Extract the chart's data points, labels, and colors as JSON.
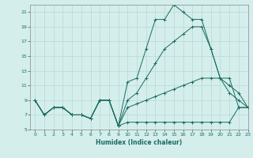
{
  "xlabel": "Humidex (Indice chaleur)",
  "background_color": "#d4eeec",
  "grid_color": "#b8d8d6",
  "line_color": "#1a6b60",
  "xlim_min": -0.5,
  "xlim_max": 23,
  "ylim_min": 5,
  "ylim_max": 22,
  "xticks": [
    0,
    1,
    2,
    3,
    4,
    5,
    6,
    7,
    8,
    9,
    10,
    11,
    12,
    13,
    14,
    15,
    16,
    17,
    18,
    19,
    20,
    21,
    22,
    23
  ],
  "yticks": [
    5,
    7,
    9,
    11,
    13,
    15,
    17,
    19,
    21
  ],
  "lines": [
    {
      "x": [
        0,
        1,
        2,
        3,
        4,
        5,
        6,
        7,
        8,
        9,
        10,
        11,
        12,
        13,
        14,
        15,
        16,
        17,
        18,
        19,
        20,
        21,
        22,
        23
      ],
      "y": [
        9,
        7,
        8,
        8,
        7,
        7,
        6.5,
        9,
        9,
        5.5,
        6,
        6,
        6,
        6,
        6,
        6,
        6,
        6,
        6,
        6,
        6,
        6,
        8,
        8
      ]
    },
    {
      "x": [
        0,
        1,
        2,
        3,
        4,
        5,
        6,
        7,
        8,
        9,
        10,
        11,
        12,
        13,
        14,
        15,
        16,
        17,
        18,
        19,
        20,
        21,
        22,
        23
      ],
      "y": [
        9,
        7,
        8,
        8,
        7,
        7,
        6.5,
        9,
        9,
        5.5,
        8,
        8.5,
        9,
        9.5,
        10,
        10.5,
        11,
        11.5,
        12,
        12,
        12,
        12,
        8,
        8
      ]
    },
    {
      "x": [
        0,
        1,
        2,
        3,
        4,
        5,
        6,
        7,
        8,
        9,
        10,
        11,
        12,
        13,
        14,
        15,
        16,
        17,
        18,
        19,
        20,
        21,
        22,
        23
      ],
      "y": [
        9,
        7,
        8,
        8,
        7,
        7,
        6.5,
        9,
        9,
        5.5,
        9,
        10,
        12,
        14,
        16,
        17,
        18,
        19,
        19,
        16,
        12,
        10,
        9,
        8
      ]
    },
    {
      "x": [
        0,
        1,
        2,
        3,
        4,
        5,
        6,
        7,
        8,
        9,
        10,
        11,
        12,
        13,
        14,
        15,
        16,
        17,
        18,
        19,
        20,
        21,
        22,
        23
      ],
      "y": [
        9,
        7,
        8,
        8,
        7,
        7,
        6.5,
        9,
        9,
        5.5,
        11.5,
        12,
        16,
        20,
        20,
        22,
        21,
        20,
        20,
        16,
        12,
        11,
        10,
        8
      ]
    }
  ]
}
